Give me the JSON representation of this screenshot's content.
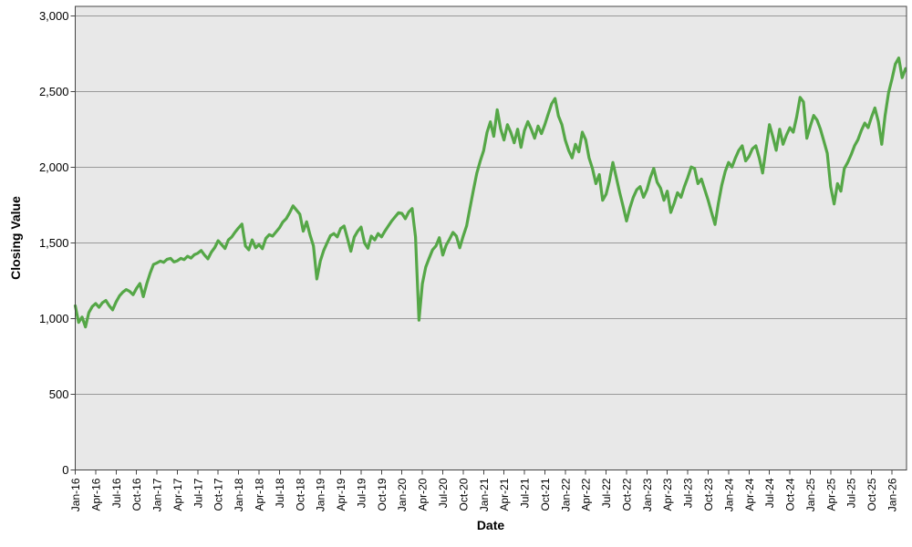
{
  "chart_data": {
    "type": "line",
    "title": "",
    "xlabel": "Date",
    "ylabel": "Closing Value",
    "legend": "none",
    "grid": "horizontal",
    "ylim": [
      0,
      3060
    ],
    "y_ticks": [
      0,
      500,
      1000,
      1500,
      2000,
      2500,
      3000
    ],
    "y_tick_labels": [
      "0",
      "500",
      "1,000",
      "1,500",
      "2,000",
      "2,500",
      "3,000"
    ],
    "x_tick_labels": [
      "Jan-16",
      "Apr-16",
      "Jul-16",
      "Oct-16",
      "Jan-17",
      "Apr-17",
      "Jul-17",
      "Oct-17",
      "Jan-18",
      "Apr-18",
      "Jul-18",
      "Oct-18",
      "Jan-19",
      "Apr-19",
      "Jul-19",
      "Oct-19",
      "Jan-20",
      "Apr-20",
      "Jul-20",
      "Oct-20",
      "Jan-21",
      "Apr-21",
      "Jul-21",
      "Oct-21",
      "Jan-22",
      "Apr-22",
      "Jul-22",
      "Oct-22",
      "Jan-23",
      "Apr-23",
      "Jul-23",
      "Oct-23",
      "Jan-24",
      "Apr-24",
      "Jul-24",
      "Oct-24",
      "Jan-25",
      "Apr-25",
      "Jul-25",
      "Oct-25",
      "Jan-26"
    ],
    "colors": {
      "line": "#55a747",
      "plot_background": "#e8e8e8",
      "gridline": "#999999",
      "frame": "#444444",
      "text": "#000000"
    },
    "series": [
      {
        "name": "Closing Value",
        "color": "#55a747",
        "x_unit": "months since Jan-2016",
        "x_start": 0,
        "x_step": 0.5,
        "values": [
          1085,
          975,
          1010,
          945,
          1040,
          1080,
          1100,
          1075,
          1105,
          1120,
          1085,
          1058,
          1110,
          1150,
          1175,
          1192,
          1180,
          1158,
          1200,
          1232,
          1145,
          1230,
          1300,
          1358,
          1368,
          1380,
          1372,
          1392,
          1398,
          1375,
          1382,
          1398,
          1390,
          1412,
          1400,
          1422,
          1432,
          1450,
          1420,
          1395,
          1440,
          1470,
          1515,
          1490,
          1463,
          1520,
          1540,
          1572,
          1600,
          1625,
          1480,
          1455,
          1520,
          1468,
          1490,
          1462,
          1530,
          1555,
          1545,
          1572,
          1600,
          1638,
          1660,
          1700,
          1745,
          1718,
          1690,
          1578,
          1640,
          1552,
          1480,
          1262,
          1380,
          1450,
          1500,
          1548,
          1562,
          1540,
          1595,
          1612,
          1530,
          1445,
          1540,
          1578,
          1605,
          1500,
          1465,
          1545,
          1520,
          1562,
          1540,
          1578,
          1612,
          1645,
          1672,
          1700,
          1695,
          1660,
          1705,
          1727,
          1540,
          990,
          1230,
          1340,
          1400,
          1455,
          1480,
          1535,
          1420,
          1485,
          1525,
          1570,
          1545,
          1468,
          1545,
          1612,
          1730,
          1850,
          1960,
          2040,
          2110,
          2230,
          2300,
          2205,
          2380,
          2255,
          2180,
          2282,
          2230,
          2162,
          2252,
          2132,
          2242,
          2302,
          2252,
          2192,
          2272,
          2222,
          2282,
          2352,
          2420,
          2455,
          2340,
          2282,
          2180,
          2112,
          2062,
          2152,
          2102,
          2232,
          2182,
          2062,
          1992,
          1892,
          1952,
          1782,
          1822,
          1912,
          2032,
          1932,
          1832,
          1742,
          1645,
          1732,
          1802,
          1852,
          1872,
          1802,
          1852,
          1932,
          1992,
          1902,
          1862,
          1782,
          1842,
          1702,
          1762,
          1832,
          1802,
          1872,
          1932,
          2002,
          1992,
          1892,
          1922,
          1852,
          1782,
          1702,
          1622,
          1762,
          1882,
          1972,
          2032,
          2002,
          2062,
          2112,
          2142,
          2042,
          2072,
          2122,
          2142,
          2062,
          1962,
          2122,
          2282,
          2202,
          2112,
          2252,
          2152,
          2212,
          2262,
          2232,
          2332,
          2462,
          2432,
          2192,
          2272,
          2342,
          2312,
          2252,
          2172,
          2092,
          1872,
          1758,
          1892,
          1842,
          1992,
          2032,
          2082,
          2142,
          2182,
          2242,
          2292,
          2262,
          2332,
          2392,
          2302,
          2152,
          2342,
          2492,
          2582,
          2682,
          2722,
          2592,
          2652
        ]
      }
    ]
  }
}
